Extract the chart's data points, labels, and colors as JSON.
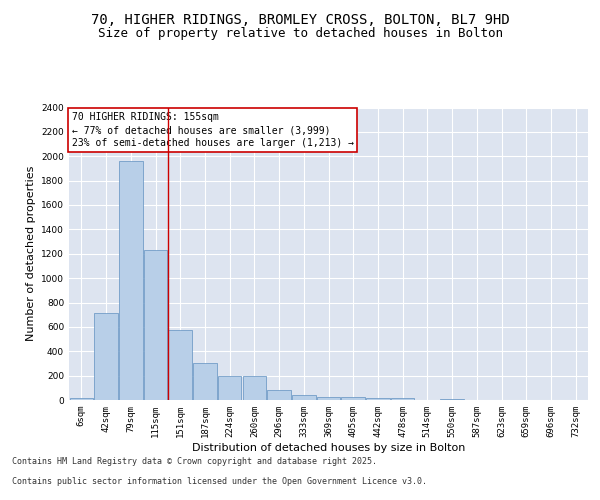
{
  "title_line1": "70, HIGHER RIDINGS, BROMLEY CROSS, BOLTON, BL7 9HD",
  "title_line2": "Size of property relative to detached houses in Bolton",
  "xlabel": "Distribution of detached houses by size in Bolton",
  "ylabel": "Number of detached properties",
  "categories": [
    "6sqm",
    "42sqm",
    "79sqm",
    "115sqm",
    "151sqm",
    "187sqm",
    "224sqm",
    "260sqm",
    "296sqm",
    "333sqm",
    "369sqm",
    "405sqm",
    "442sqm",
    "478sqm",
    "514sqm",
    "550sqm",
    "587sqm",
    "623sqm",
    "659sqm",
    "696sqm",
    "732sqm"
  ],
  "values": [
    15,
    710,
    1960,
    1230,
    575,
    300,
    200,
    200,
    80,
    45,
    25,
    25,
    15,
    15,
    0,
    10,
    0,
    0,
    0,
    0,
    0
  ],
  "bar_color": "#b8cfe8",
  "bar_edge_color": "#6090c0",
  "bg_color": "#dde4f0",
  "vline_color": "#cc0000",
  "annotation_text": "70 HIGHER RIDINGS: 155sqm\n← 77% of detached houses are smaller (3,999)\n23% of semi-detached houses are larger (1,213) →",
  "ylim": [
    0,
    2400
  ],
  "yticks": [
    0,
    200,
    400,
    600,
    800,
    1000,
    1200,
    1400,
    1600,
    1800,
    2000,
    2200,
    2400
  ],
  "footer_line1": "Contains HM Land Registry data © Crown copyright and database right 2025.",
  "footer_line2": "Contains public sector information licensed under the Open Government Licence v3.0.",
  "title_fontsize": 10,
  "subtitle_fontsize": 9,
  "axis_label_fontsize": 8,
  "tick_fontsize": 6.5,
  "annotation_fontsize": 7,
  "footer_fontsize": 6
}
